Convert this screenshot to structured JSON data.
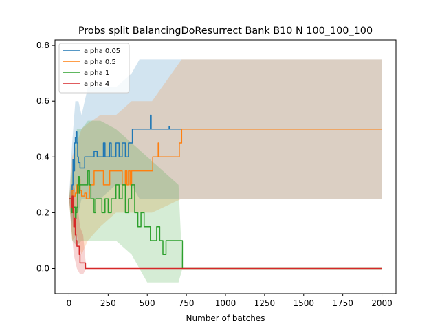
{
  "chart_data": {
    "type": "line",
    "title": "Probs split BalancingDoResurrect Bank B10 N 100_100_100",
    "xlabel": "Number of batches",
    "ylabel": "",
    "xlim": [
      -90,
      2090
    ],
    "ylim": [
      -0.09,
      0.82
    ],
    "xticks": [
      0,
      250,
      500,
      750,
      1000,
      1250,
      1500,
      1750,
      2000
    ],
    "xtick_labels": [
      "0",
      "250",
      "500",
      "750",
      "1000",
      "1250",
      "1500",
      "1750",
      "2000"
    ],
    "yticks": [
      0.0,
      0.2,
      0.4,
      0.6,
      0.8
    ],
    "ytick_labels": [
      "0.0",
      "0.2",
      "0.4",
      "0.6",
      "0.8"
    ],
    "grid": false,
    "legend_position": "top-left",
    "series": [
      {
        "name": "alpha 0.05",
        "color": "#1f77b4",
        "points": [
          [
            0,
            0.25
          ],
          [
            15,
            0.25
          ],
          [
            20,
            0.3
          ],
          [
            25,
            0.39
          ],
          [
            30,
            0.35
          ],
          [
            35,
            0.45
          ],
          [
            40,
            0.47
          ],
          [
            45,
            0.49
          ],
          [
            50,
            0.45
          ],
          [
            55,
            0.4
          ],
          [
            60,
            0.38
          ],
          [
            70,
            0.36
          ],
          [
            80,
            0.36
          ],
          [
            95,
            0.36
          ],
          [
            100,
            0.4
          ],
          [
            130,
            0.4
          ],
          [
            150,
            0.4
          ],
          [
            160,
            0.42
          ],
          [
            180,
            0.4
          ],
          [
            200,
            0.4
          ],
          [
            220,
            0.45
          ],
          [
            230,
            0.4
          ],
          [
            250,
            0.4
          ],
          [
            260,
            0.45
          ],
          [
            270,
            0.4
          ],
          [
            300,
            0.45
          ],
          [
            320,
            0.4
          ],
          [
            340,
            0.45
          ],
          [
            360,
            0.4
          ],
          [
            380,
            0.45
          ],
          [
            400,
            0.45
          ],
          [
            405,
            0.5
          ],
          [
            440,
            0.5
          ],
          [
            500,
            0.5
          ],
          [
            520,
            0.55
          ],
          [
            525,
            0.5
          ],
          [
            600,
            0.5
          ],
          [
            640,
            0.51
          ],
          [
            645,
            0.5
          ],
          [
            700,
            0.5
          ],
          [
            720,
            0.5
          ],
          [
            2000,
            0.5
          ]
        ],
        "band": [
          [
            0,
            0.25,
            0.25
          ],
          [
            20,
            0.15,
            0.45
          ],
          [
            40,
            0.3,
            0.6
          ],
          [
            60,
            0.2,
            0.6
          ],
          [
            80,
            0.25,
            0.55
          ],
          [
            120,
            0.25,
            0.65
          ],
          [
            200,
            0.25,
            0.65
          ],
          [
            300,
            0.3,
            0.65
          ],
          [
            400,
            0.3,
            0.7
          ],
          [
            450,
            0.25,
            0.75
          ],
          [
            720,
            0.25,
            0.75
          ],
          [
            2000,
            0.25,
            0.75
          ]
        ]
      },
      {
        "name": "alpha 0.5",
        "color": "#ff7f0e",
        "points": [
          [
            0,
            0.25
          ],
          [
            15,
            0.25
          ],
          [
            20,
            0.28
          ],
          [
            30,
            0.26
          ],
          [
            40,
            0.27
          ],
          [
            50,
            0.3
          ],
          [
            55,
            0.27
          ],
          [
            60,
            0.32
          ],
          [
            70,
            0.28
          ],
          [
            80,
            0.26
          ],
          [
            95,
            0.26
          ],
          [
            100,
            0.27
          ],
          [
            110,
            0.25
          ],
          [
            125,
            0.25
          ],
          [
            130,
            0.3
          ],
          [
            150,
            0.3
          ],
          [
            160,
            0.35
          ],
          [
            200,
            0.35
          ],
          [
            220,
            0.3
          ],
          [
            250,
            0.3
          ],
          [
            260,
            0.35
          ],
          [
            330,
            0.35
          ],
          [
            340,
            0.3
          ],
          [
            360,
            0.35
          ],
          [
            370,
            0.3
          ],
          [
            380,
            0.35
          ],
          [
            390,
            0.3
          ],
          [
            400,
            0.35
          ],
          [
            480,
            0.35
          ],
          [
            530,
            0.35
          ],
          [
            535,
            0.4
          ],
          [
            560,
            0.4
          ],
          [
            570,
            0.45
          ],
          [
            575,
            0.4
          ],
          [
            700,
            0.4
          ],
          [
            705,
            0.45
          ],
          [
            715,
            0.45
          ],
          [
            720,
            0.5
          ],
          [
            2000,
            0.5
          ]
        ],
        "band": [
          [
            0,
            0.25,
            0.25
          ],
          [
            20,
            0.1,
            0.4
          ],
          [
            50,
            0.12,
            0.45
          ],
          [
            80,
            0.05,
            0.5
          ],
          [
            120,
            0.1,
            0.52
          ],
          [
            200,
            0.15,
            0.55
          ],
          [
            300,
            0.2,
            0.55
          ],
          [
            400,
            0.2,
            0.6
          ],
          [
            530,
            0.2,
            0.6
          ],
          [
            720,
            0.25,
            0.75
          ],
          [
            2000,
            0.25,
            0.75
          ]
        ]
      },
      {
        "name": "alpha 1",
        "color": "#2ca02c",
        "points": [
          [
            0,
            0.25
          ],
          [
            10,
            0.25
          ],
          [
            15,
            0.2
          ],
          [
            20,
            0.25
          ],
          [
            30,
            0.22
          ],
          [
            40,
            0.18
          ],
          [
            45,
            0.2
          ],
          [
            50,
            0.22
          ],
          [
            55,
            0.3
          ],
          [
            60,
            0.33
          ],
          [
            65,
            0.27
          ],
          [
            70,
            0.3
          ],
          [
            80,
            0.3
          ],
          [
            100,
            0.3
          ],
          [
            120,
            0.35
          ],
          [
            130,
            0.3
          ],
          [
            140,
            0.25
          ],
          [
            150,
            0.25
          ],
          [
            160,
            0.2
          ],
          [
            170,
            0.25
          ],
          [
            200,
            0.25
          ],
          [
            210,
            0.2
          ],
          [
            230,
            0.25
          ],
          [
            250,
            0.2
          ],
          [
            270,
            0.25
          ],
          [
            300,
            0.3
          ],
          [
            320,
            0.25
          ],
          [
            340,
            0.3
          ],
          [
            360,
            0.2
          ],
          [
            380,
            0.25
          ],
          [
            400,
            0.3
          ],
          [
            420,
            0.2
          ],
          [
            440,
            0.15
          ],
          [
            460,
            0.2
          ],
          [
            480,
            0.15
          ],
          [
            500,
            0.15
          ],
          [
            520,
            0.1
          ],
          [
            540,
            0.1
          ],
          [
            560,
            0.15
          ],
          [
            580,
            0.1
          ],
          [
            600,
            0.05
          ],
          [
            620,
            0.1
          ],
          [
            640,
            0.1
          ],
          [
            660,
            0.1
          ],
          [
            700,
            0.1
          ],
          [
            720,
            0.1
          ],
          [
            725,
            0.0
          ],
          [
            2000,
            0.0
          ]
        ],
        "band": [
          [
            0,
            0.25,
            0.25
          ],
          [
            20,
            0.1,
            0.35
          ],
          [
            50,
            0.08,
            0.5
          ],
          [
            80,
            0.1,
            0.5
          ],
          [
            120,
            0.1,
            0.53
          ],
          [
            200,
            0.1,
            0.53
          ],
          [
            300,
            0.1,
            0.5
          ],
          [
            400,
            0.05,
            0.45
          ],
          [
            500,
            -0.05,
            0.4
          ],
          [
            600,
            -0.05,
            0.35
          ],
          [
            700,
            -0.05,
            0.3
          ],
          [
            725,
            0.0,
            0.0
          ],
          [
            2000,
            0.0,
            0.0
          ]
        ]
      },
      {
        "name": "alpha 4",
        "color": "#d62728",
        "points": [
          [
            0,
            0.25
          ],
          [
            10,
            0.25
          ],
          [
            15,
            0.22
          ],
          [
            20,
            0.26
          ],
          [
            25,
            0.2
          ],
          [
            30,
            0.15
          ],
          [
            35,
            0.18
          ],
          [
            40,
            0.12
          ],
          [
            45,
            0.1
          ],
          [
            50,
            0.08
          ],
          [
            60,
            0.08
          ],
          [
            65,
            0.05
          ],
          [
            70,
            0.02
          ],
          [
            80,
            0.02
          ],
          [
            90,
            0.02
          ],
          [
            100,
            0.02
          ],
          [
            105,
            0.0
          ],
          [
            120,
            0.0
          ],
          [
            2000,
            0.0
          ]
        ],
        "band": [
          [
            0,
            0.25,
            0.25
          ],
          [
            15,
            0.15,
            0.3
          ],
          [
            30,
            0.05,
            0.3
          ],
          [
            50,
            0.0,
            0.25
          ],
          [
            70,
            -0.02,
            0.15
          ],
          [
            90,
            -0.02,
            0.12
          ],
          [
            110,
            0.0,
            0.0
          ],
          [
            2000,
            0.0,
            0.0
          ]
        ]
      }
    ]
  }
}
